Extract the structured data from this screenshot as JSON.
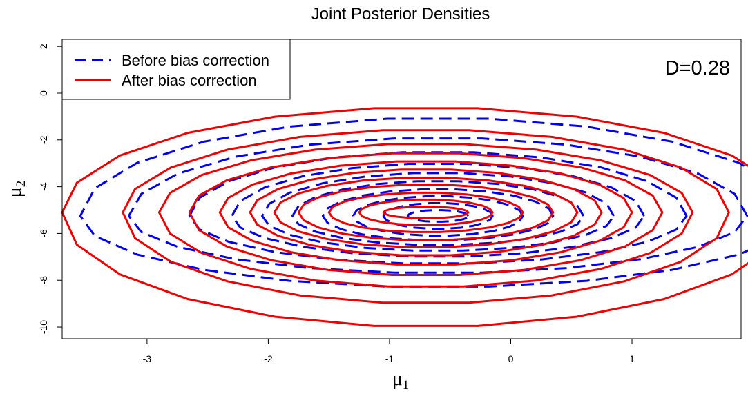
{
  "chart_data": {
    "type": "contour",
    "title": "Joint Posterior Densities",
    "xlabel": {
      "base": "μ",
      "sub": "1"
    },
    "ylabel": {
      "base": "μ",
      "sub": "2"
    },
    "xlim": [
      -3.7,
      1.9
    ],
    "ylim": [
      -10.5,
      2.3
    ],
    "x_ticks": [
      -3,
      -2,
      -1,
      0,
      1
    ],
    "y_ticks": [
      -10,
      -8,
      -6,
      -4,
      -2,
      0,
      2
    ],
    "grid": false,
    "legend_position": "top-left",
    "annotation": "D=0.28",
    "series": [
      {
        "name": "Before bias correction",
        "color": "#0000ee",
        "line_style": "dashed",
        "center": [
          -0.6,
          -5.25
        ],
        "levels": [
          {
            "rx": 0.25,
            "ryTop": 0.25,
            "ryBot": 0.25
          },
          {
            "rx": 0.45,
            "ryTop": 0.55,
            "ryBot": 0.55
          },
          {
            "rx": 0.7,
            "ryTop": 0.85,
            "ryBot": 0.85
          },
          {
            "rx": 0.95,
            "ryTop": 1.15,
            "ryBot": 1.05
          },
          {
            "rx": 1.2,
            "ryTop": 1.5,
            "ryBot": 1.25
          },
          {
            "rx": 1.45,
            "ryTop": 1.85,
            "ryBot": 1.5
          },
          {
            "rx": 1.7,
            "ryTop": 2.25,
            "ryBot": 1.75
          },
          {
            "rx": 2.05,
            "ryTop": 2.75,
            "ryBot": 2.05
          },
          {
            "rx": 2.55,
            "ryTop": 3.35,
            "ryBot": 2.45
          },
          {
            "rx": 2.95,
            "ryTop": 4.2,
            "ryBot": 3.05
          }
        ]
      },
      {
        "name": "After bias correction",
        "color": "#ee0000",
        "line_style": "solid",
        "center": [
          -0.7,
          -5.1
        ],
        "levels": [
          {
            "rx": 0.35,
            "ryTop": 0.25,
            "ryBot": 0.25
          },
          {
            "rx": 0.55,
            "ryTop": 0.55,
            "ryBot": 0.55
          },
          {
            "rx": 0.8,
            "ryTop": 0.85,
            "ryBot": 0.85
          },
          {
            "rx": 1.05,
            "ryTop": 1.2,
            "ryBot": 1.2
          },
          {
            "rx": 1.25,
            "ryTop": 1.5,
            "ryBot": 1.5
          },
          {
            "rx": 1.45,
            "ryTop": 1.85,
            "ryBot": 1.85
          },
          {
            "rx": 1.7,
            "ryTop": 2.2,
            "ryBot": 2.25
          },
          {
            "rx": 1.95,
            "ryTop": 2.55,
            "ryBot": 2.7
          },
          {
            "rx": 2.2,
            "ryTop": 2.95,
            "ryBot": 3.2
          },
          {
            "rx": 2.5,
            "ryTop": 3.55,
            "ryBot": 3.9
          },
          {
            "rx": 3.0,
            "ryTop": 4.5,
            "ryBot": 4.9
          }
        ]
      }
    ]
  }
}
